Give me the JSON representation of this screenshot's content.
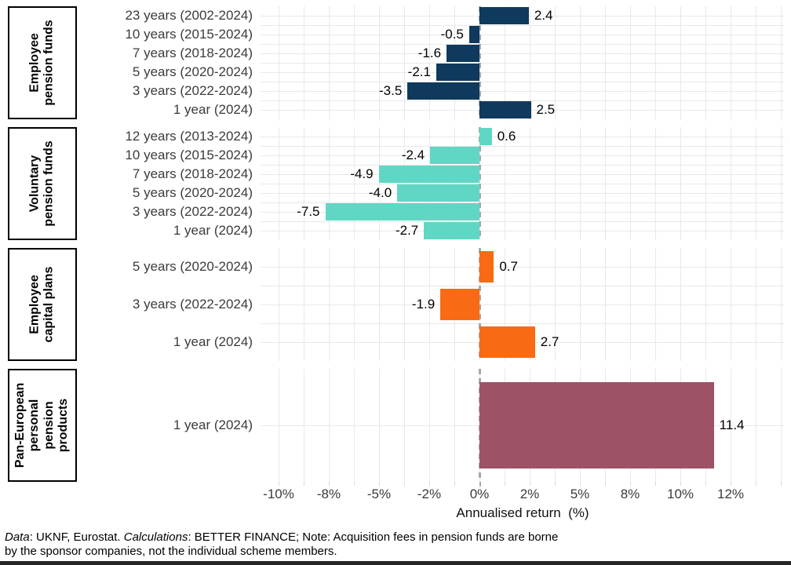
{
  "chart_data": {
    "type": "bar",
    "orientation": "horizontal",
    "xlabel": "Annualised return  (%)",
    "x_tick_labels": [
      "-10%",
      "-8%",
      "-5%",
      "-2%",
      "0%",
      "2%",
      "5%",
      "8%",
      "10%",
      "12%"
    ],
    "x_tick_values": [
      -10,
      -8,
      -5,
      -2,
      0,
      2,
      5,
      8,
      10,
      12
    ],
    "grid": true,
    "zero_line": "dashed",
    "groups": [
      {
        "label": "Employee pension funds",
        "label_lines": [
          "Employee",
          "pension funds"
        ],
        "color": "#0F3A5D",
        "rows": [
          {
            "category": "23 years (2002-2024)",
            "value": 2.4,
            "label": "2.4"
          },
          {
            "category": "10 years (2015-2024)",
            "value": -0.5,
            "label": "-0.5"
          },
          {
            "category": "7 years (2018-2024)",
            "value": -1.6,
            "label": "-1.6"
          },
          {
            "category": "5 years (2020-2024)",
            "value": -2.1,
            "label": "-2.1"
          },
          {
            "category": "3 years (2022-2024)",
            "value": -3.5,
            "label": "-3.5"
          },
          {
            "category": "1 year (2024)",
            "value": 2.5,
            "label": "2.5"
          }
        ]
      },
      {
        "label": "Voluntary pension funds",
        "label_lines": [
          "Voluntary",
          "pension funds"
        ],
        "color": "#5FD7C4",
        "rows": [
          {
            "category": "12 years (2013-2024)",
            "value": 0.6,
            "label": "0.6"
          },
          {
            "category": "10 years (2015-2024)",
            "value": -2.4,
            "label": "-2.4"
          },
          {
            "category": "7 years (2018-2024)",
            "value": -4.9,
            "label": "-4.9"
          },
          {
            "category": "5 years (2020-2024)",
            "value": -4.0,
            "label": "-4.0"
          },
          {
            "category": "3 years (2022-2024)",
            "value": -7.5,
            "label": "-7.5"
          },
          {
            "category": "1 year (2024)",
            "value": -2.7,
            "label": "-2.7"
          }
        ]
      },
      {
        "label": "Employee capital plans",
        "label_lines": [
          "Employee",
          "capital plans"
        ],
        "color": "#F96A15",
        "rows": [
          {
            "category": "5 years (2020-2024)",
            "value": 0.7,
            "label": "0.7"
          },
          {
            "category": "3 years (2022-2024)",
            "value": -1.9,
            "label": "-1.9"
          },
          {
            "category": "1 year (2024)",
            "value": 2.7,
            "label": "2.7"
          }
        ]
      },
      {
        "label": "Pan-European personal pension products",
        "label_lines": [
          "Pan-European",
          "personal",
          "pension",
          "products"
        ],
        "color": "#9E5266",
        "rows": [
          {
            "category": "1 year (2024)",
            "value": 11.4,
            "label": "11.4"
          }
        ]
      }
    ]
  },
  "footer": {
    "segments": [
      {
        "text": "Data",
        "italic": true
      },
      {
        "text": ": UKNF, Eurostat. ",
        "italic": false
      },
      {
        "text": "Calculations",
        "italic": true
      },
      {
        "text": ": BETTER FINANCE; Note: Acquisition fees in pension funds are borne by the sponsor companies, not the individual scheme members.",
        "italic": false
      }
    ]
  },
  "colors": {
    "gridline": "#E8E8E8",
    "zero_line": "#A8A8A8",
    "axis_text": "#3B3B3B",
    "facet_border": "#000000",
    "bottom_strip": "#262626"
  }
}
